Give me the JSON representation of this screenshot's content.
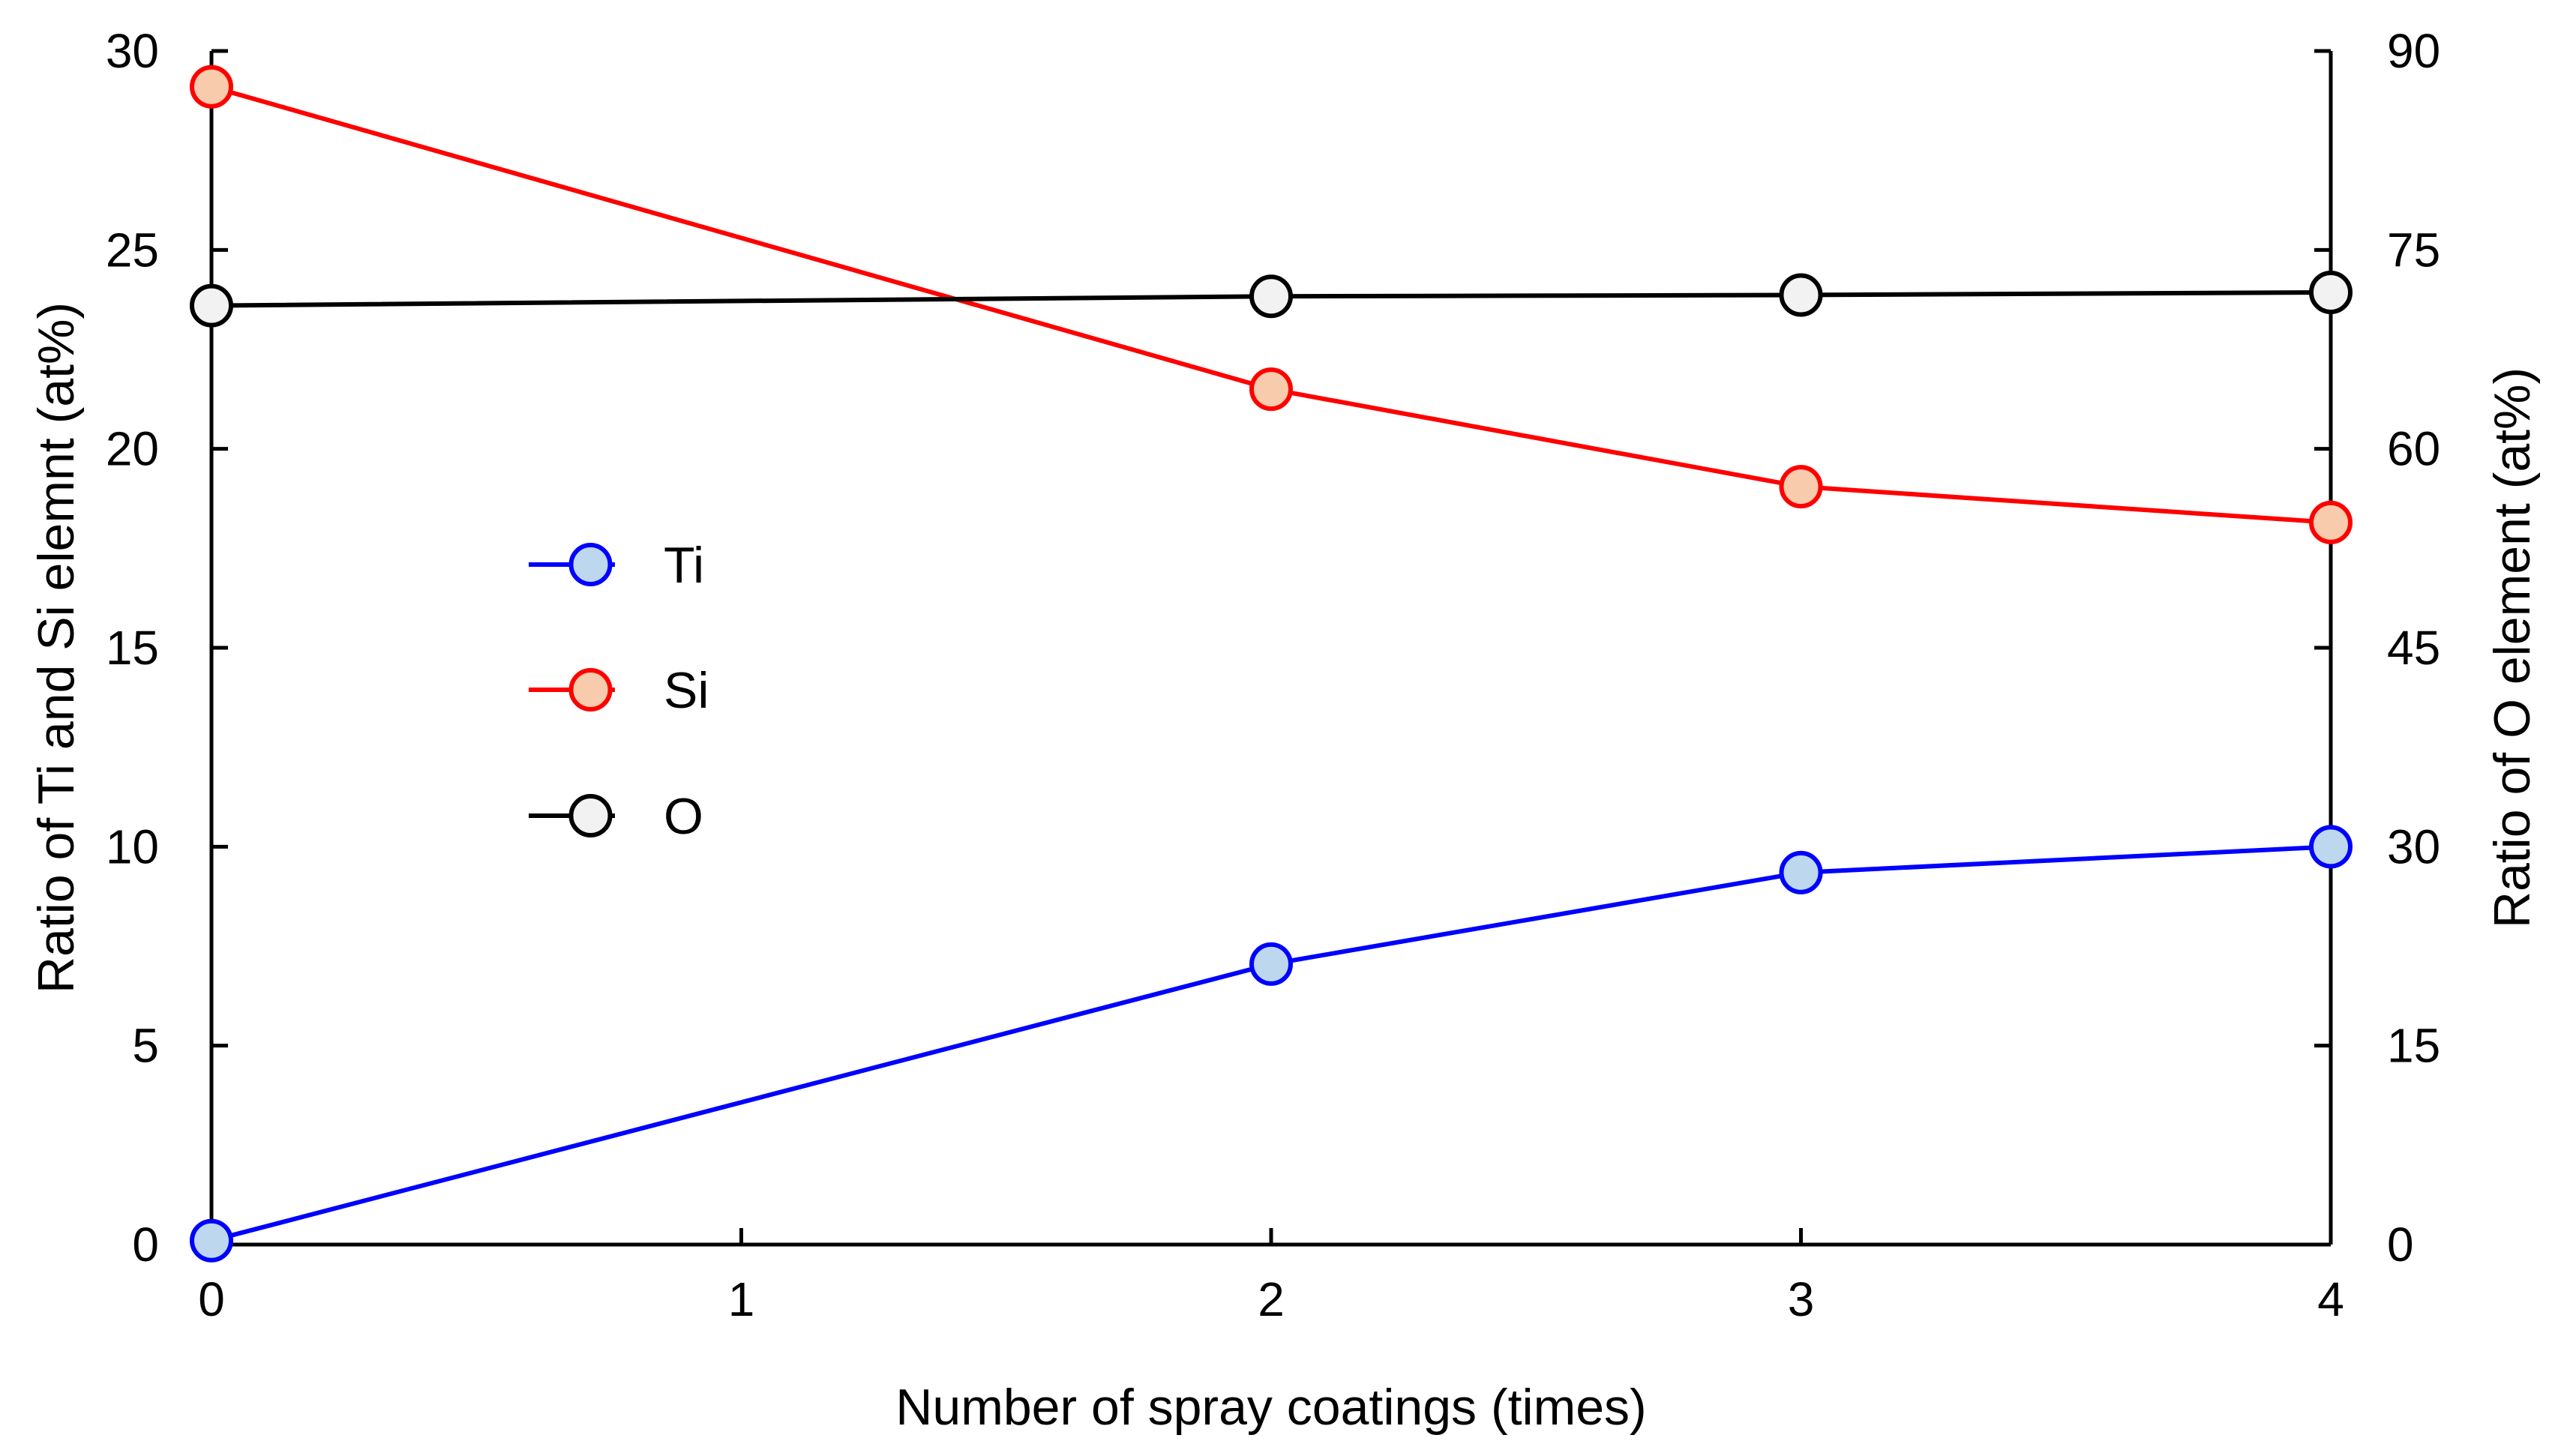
{
  "chart_data": {
    "type": "line",
    "title": "",
    "xlabel": "Number of spray coatings (times)",
    "ylabel": "Ratio of Ti and Si elemnt (at%)",
    "y2label": "Ratio of O element (at%)",
    "xlim": [
      0,
      4
    ],
    "ylim": [
      0,
      30
    ],
    "y2lim": [
      0,
      90
    ],
    "x_ticks": [
      0,
      1,
      2,
      3,
      4
    ],
    "x_tick_labels": [
      "0",
      "1",
      "2",
      "3",
      "4"
    ],
    "y_ticks": [
      0,
      5,
      10,
      15,
      20,
      25,
      30
    ],
    "y_tick_labels": [
      "0",
      "5",
      "10",
      "15",
      "20",
      "25",
      "30"
    ],
    "y2_ticks": [
      0,
      15,
      30,
      45,
      60,
      75,
      90
    ],
    "y2_tick_labels": [
      "0",
      "15",
      "30",
      "45",
      "60",
      "75",
      "90"
    ],
    "grid": false,
    "legend_position": "middle-left",
    "series": [
      {
        "name": "Ti",
        "axis": "left",
        "x": [
          0,
          2,
          3,
          4
        ],
        "values": [
          0.1,
          7.05,
          9.35,
          10.0
        ],
        "line_color": "#0000ff",
        "marker_fill": "#bdd7ee",
        "marker_stroke": "#0000ff"
      },
      {
        "name": "Si",
        "axis": "left",
        "x": [
          0,
          2,
          3,
          4
        ],
        "values": [
          29.1,
          21.5,
          19.05,
          18.15
        ],
        "line_color": "#ff0000",
        "marker_fill": "#f8cbad",
        "marker_stroke": "#ff0000"
      },
      {
        "name": "O",
        "axis": "right",
        "x": [
          0,
          2,
          3,
          4
        ],
        "values": [
          70.8,
          71.5,
          71.6,
          71.8
        ],
        "line_color": "#000000",
        "marker_fill": "#f2f2f2",
        "marker_stroke": "#000000"
      }
    ]
  }
}
